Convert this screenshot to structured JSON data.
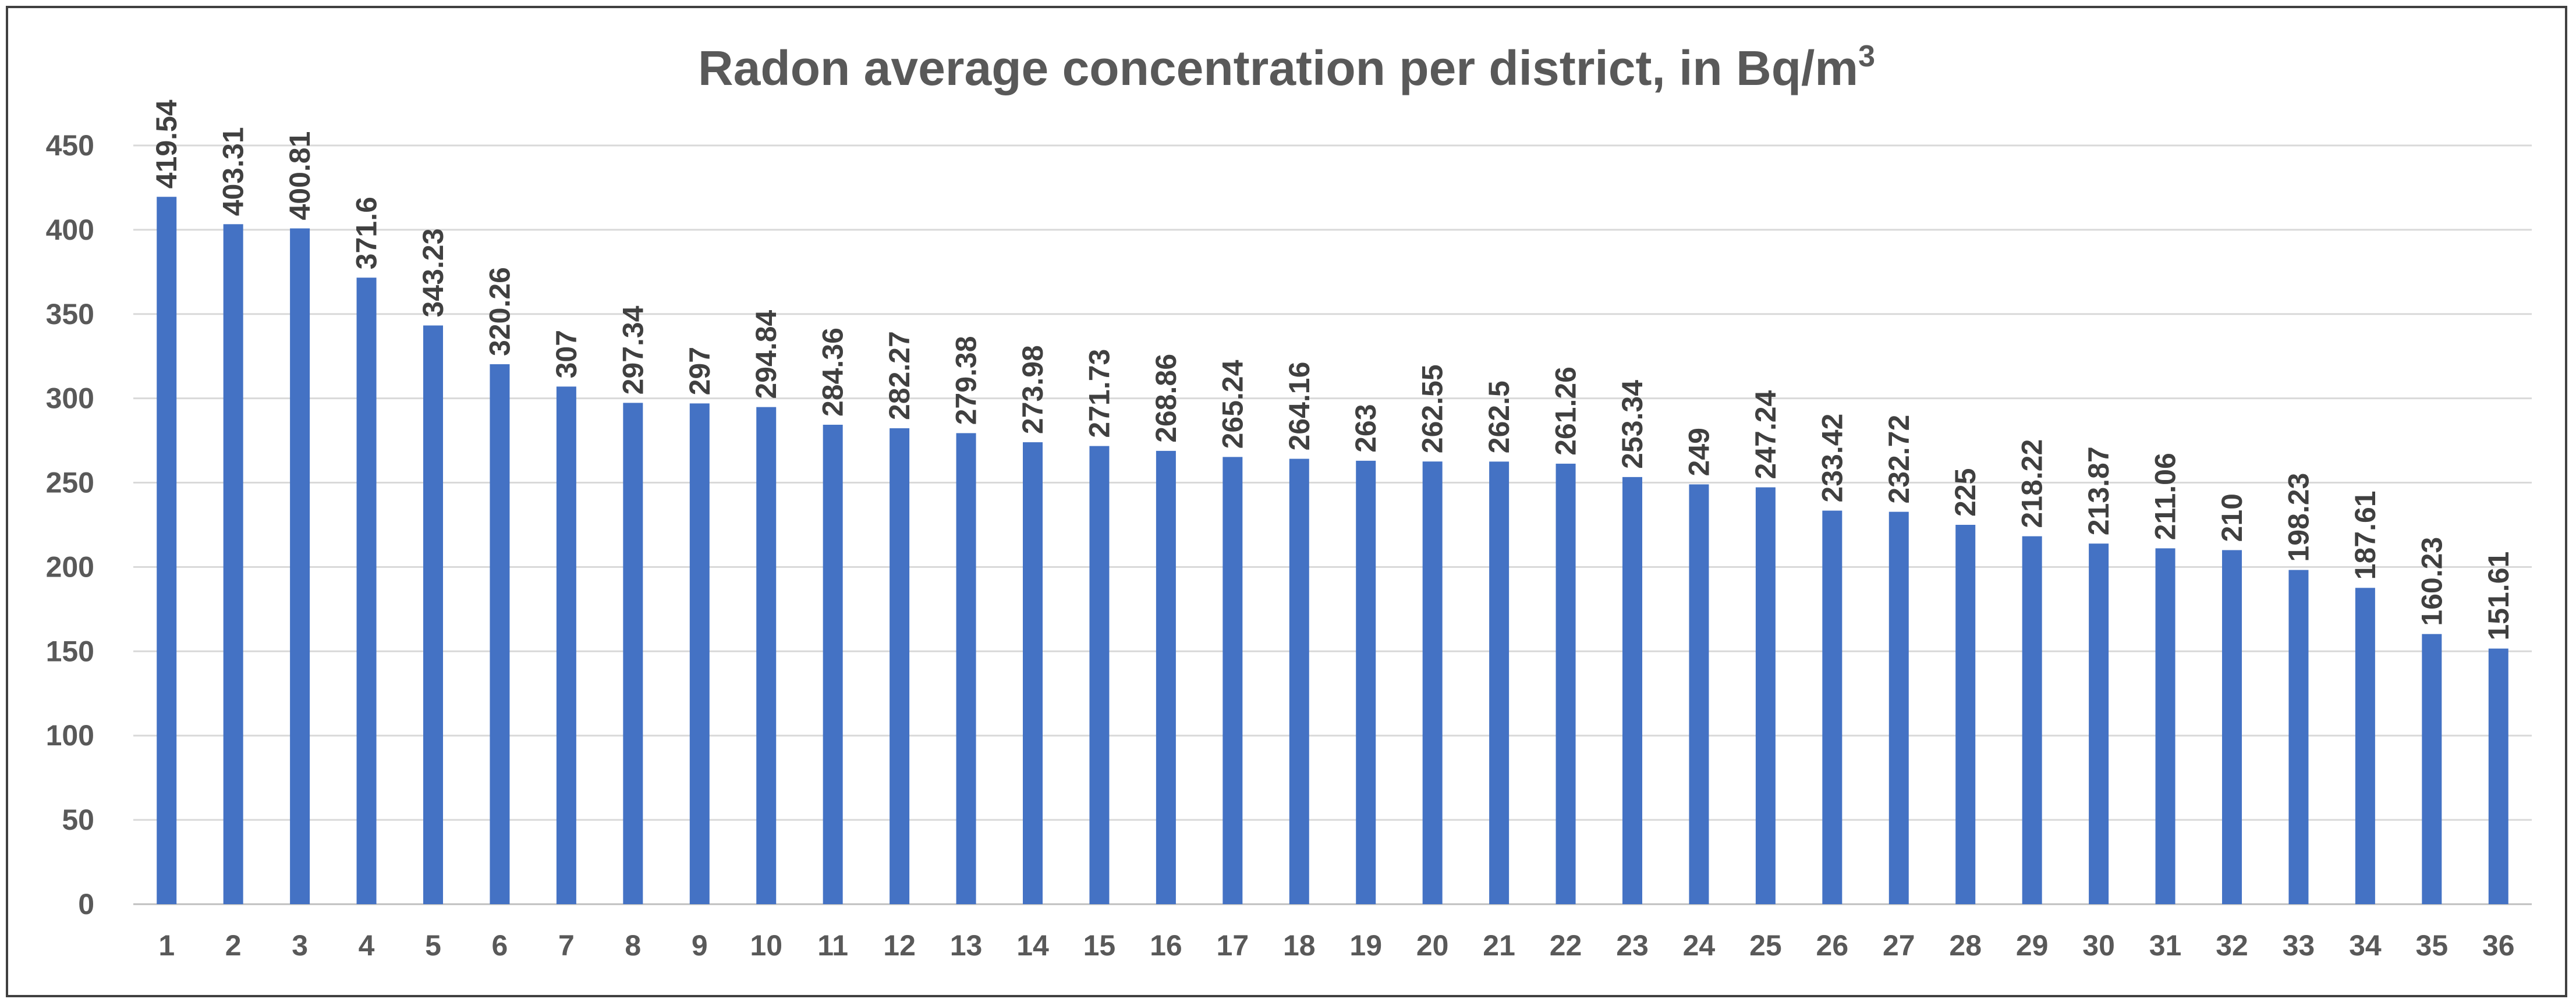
{
  "chart_data": {
    "type": "bar",
    "title": "Radon average concentration per district, in Bq/m",
    "title_superscript": "3",
    "xlabel": "",
    "ylabel": "",
    "ylim": [
      0,
      450
    ],
    "yticks": [
      "0",
      "50",
      "100",
      "150",
      "200",
      "250",
      "300",
      "350",
      "400",
      "450"
    ],
    "grid": true,
    "bar_color": "#4472C4",
    "categories": [
      "1",
      "2",
      "3",
      "4",
      "5",
      "6",
      "7",
      "8",
      "9",
      "10",
      "11",
      "12",
      "13",
      "14",
      "15",
      "16",
      "17",
      "18",
      "19",
      "20",
      "21",
      "22",
      "23",
      "24",
      "25",
      "26",
      "27",
      "28",
      "29",
      "30",
      "31",
      "32",
      "33",
      "34",
      "35",
      "36"
    ],
    "values": [
      419.54,
      403.31,
      400.81,
      371.6,
      343.23,
      320.26,
      307,
      297.34,
      297,
      294.84,
      284.36,
      282.27,
      279.38,
      273.98,
      271.73,
      268.86,
      265.24,
      264.16,
      263,
      262.55,
      262.5,
      261.26,
      253.34,
      249,
      247.24,
      233.42,
      232.72,
      225,
      218.22,
      213.87,
      211.06,
      210,
      198.23,
      187.61,
      160.23,
      151.61
    ],
    "data_labels": [
      "419.54",
      "403.31",
      "400.81",
      "371.6",
      "343.23",
      "320.26",
      "307",
      "297.34",
      "297",
      "294.84",
      "284.36",
      "282.27",
      "279.38",
      "273.98",
      "271.73",
      "268.86",
      "265.24",
      "264.16",
      "263",
      "262.55",
      "262.5",
      "261.26",
      "253.34",
      "249",
      "247.24",
      "233.42",
      "232.72",
      "225",
      "218.22",
      "213.87",
      "211.06",
      "210",
      "198.23",
      "187.61",
      "160.23",
      "151.61"
    ]
  }
}
